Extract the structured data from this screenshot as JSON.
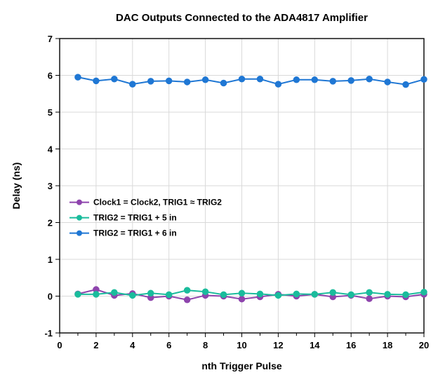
{
  "chart": {
    "type": "line",
    "title": "DAC Outputs Connected to the ADA4817 Amplifier",
    "title_fontsize": 15,
    "xlabel": "nth Trigger Pulse",
    "ylabel": "Delay (ns)",
    "label_fontsize": 14,
    "tick_fontsize": 13,
    "legend_fontsize": 12,
    "background_color": "#ffffff",
    "plot_background_color": "#ffffff",
    "axis_color": "#000000",
    "grid_color": "#d9d9d9",
    "xlim": [
      0,
      20
    ],
    "ylim": [
      -1,
      7
    ],
    "xtick_step": 2,
    "ytick_step": 1,
    "x_minor_ticks": true,
    "grid": true,
    "marker_style": "circle",
    "marker_radius": 4,
    "line_width": 2,
    "x": [
      1,
      2,
      3,
      4,
      5,
      6,
      7,
      8,
      9,
      10,
      11,
      12,
      13,
      14,
      15,
      16,
      17,
      18,
      19,
      20
    ],
    "series": [
      {
        "name": "Clock1 = Clock2, TRIG1 ≈ TRIG2",
        "color": "#8e44ad",
        "y": [
          0.06,
          0.18,
          0.02,
          0.07,
          -0.04,
          0.0,
          -0.1,
          0.02,
          0.0,
          -0.08,
          -0.02,
          0.05,
          0.0,
          0.05,
          -0.02,
          0.02,
          -0.07,
          0.0,
          -0.02,
          0.05
        ]
      },
      {
        "name": "TRIG2 = TRIG1 + 5 in",
        "color": "#1abc9c",
        "y": [
          0.05,
          0.05,
          0.1,
          0.02,
          0.08,
          0.04,
          0.16,
          0.12,
          0.04,
          0.08,
          0.06,
          0.02,
          0.06,
          0.05,
          0.1,
          0.04,
          0.1,
          0.05,
          0.04,
          0.11
        ]
      },
      {
        "name": "TRIG2 = TRIG1 + 6 in",
        "color": "#1f77d4",
        "y": [
          5.95,
          5.85,
          5.9,
          5.76,
          5.84,
          5.85,
          5.82,
          5.88,
          5.79,
          5.9,
          5.9,
          5.76,
          5.88,
          5.88,
          5.84,
          5.86,
          5.9,
          5.82,
          5.75,
          5.89
        ]
      }
    ],
    "legend_position": "inside-lower-left"
  }
}
